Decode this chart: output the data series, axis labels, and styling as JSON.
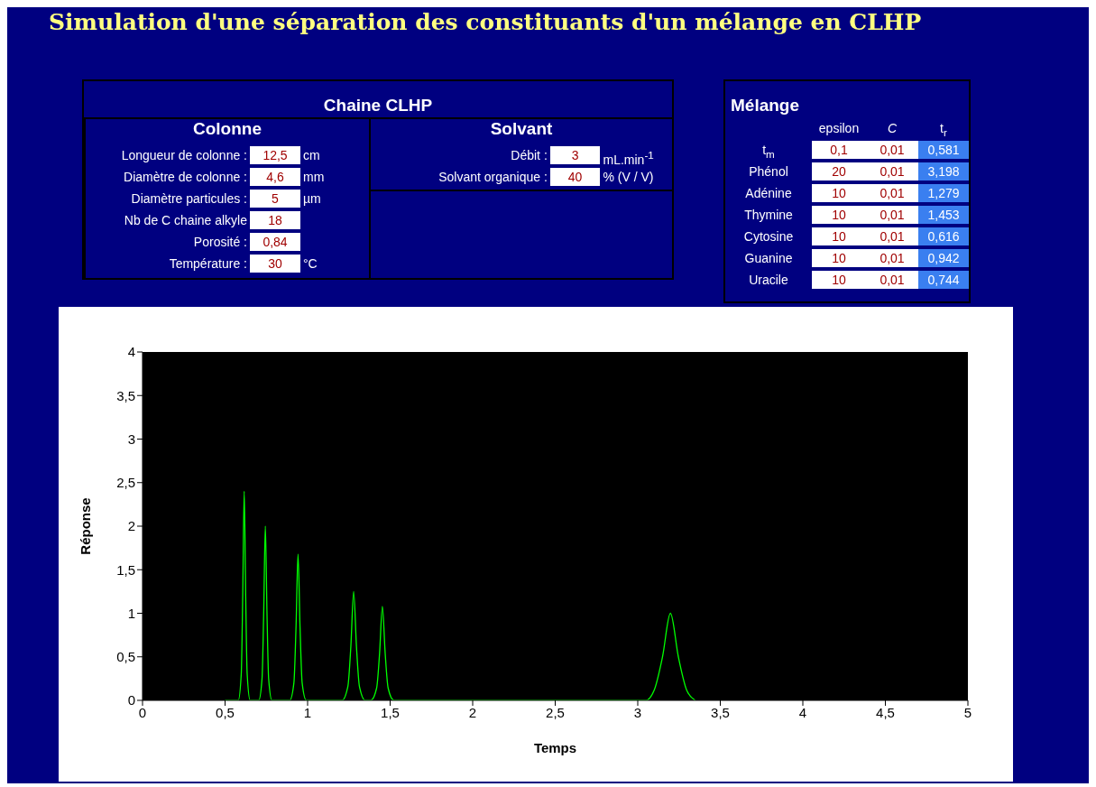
{
  "chart_data": [
    {
      "type": "other",
      "title": "Simulation d'une séparation des constituants d'un mélange en CLHP"
    },
    {
      "type": "other",
      "title": "Chaine CLHP",
      "subtitle": "Colonne",
      "annotations": [
        "Longueur de colonne :",
        "12,5",
        "cm",
        "Diamètre de colonne :",
        "4,6",
        "mm",
        "Diamètre particules :",
        "5",
        "µm",
        "Nb de C chaine alkyle",
        "18",
        null,
        "Porosité :",
        "0,84",
        null,
        "Température :",
        "30",
        "°C"
      ]
    },
    {
      "type": "other",
      "subtitle": "Solvant",
      "annotations": [
        "Débit :",
        "3",
        "mL.min$^{-1}$",
        "Solvant organique :",
        "40",
        "% (V / V)"
      ]
    },
    {
      "type": "other",
      "title": "Mélange",
      "annotations": [
        null,
        "epsilon",
        "C",
        "t$_{r}$",
        "t$_{m}$",
        "0,1",
        "0,01",
        "0,581",
        "Phénol",
        "20",
        "0,01",
        "3,198",
        "Adénine",
        "10",
        "0,01",
        "1,279",
        "Thymine",
        "10",
        "0,01",
        "1,453",
        "Cytosine",
        "10",
        "0,01",
        "0,616",
        "Guanine",
        "10",
        "0,01",
        "0,942",
        "Uracile",
        "10",
        "0,01",
        "0,744"
      ]
    },
    {
      "type": "line",
      "xlabel": "Temps",
      "ylabel": "Réponse",
      "marker": "none",
      "line_style": "solid",
      "xlim": [
        0,
        5
      ],
      "ylim": [
        0,
        4
      ],
      "xticks": [
        0,
        {
          "value": 0.5,
          "label": "0,5"
        },
        1,
        {
          "value": 1.5,
          "label": "1,5"
        },
        2,
        {
          "value": 2.5,
          "label": "2,5"
        },
        3,
        {
          "value": 3.5,
          "label": "3,5"
        },
        4,
        {
          "value": 4.5,
          "label": "4,5"
        },
        5
      ],
      "yticks": [
        0,
        {
          "value": 0.5,
          "label": "0,5"
        },
        1,
        {
          "value": 1.5,
          "label": "1,5"
        },
        2,
        {
          "value": 2.5,
          "label": "2,5"
        },
        3,
        {
          "value": 3.5,
          "label": "3,5"
        },
        4
      ],
      "series": [
        {
          "color": "#00ff00",
          "x": [
            0.5,
            0.58,
            0.598,
            0.607,
            0.616,
            0.625,
            0.634,
            0.652,
            0.704,
            0.724,
            0.734,
            0.744,
            0.754,
            0.764,
            0.784,
            0.892,
            0.917,
            0.93,
            0.942,
            0.954,
            0.967,
            0.992,
            1.209,
            1.244,
            1.262,
            1.279,
            1.296,
            1.314,
            1.349,
            1.383,
            1.418,
            1.436,
            1.453,
            1.47,
            1.488,
            1.523,
            3.048,
            3.1,
            3.15,
            3.198,
            3.246,
            3.296,
            3.348
          ],
          "values": [
            0,
            0,
            0.3,
            1.2,
            2.4,
            1.2,
            0.3,
            0,
            0,
            0.25,
            1.0,
            2.0,
            1.0,
            0.25,
            0,
            0,
            0.2,
            0.85,
            1.68,
            0.85,
            0.2,
            0,
            0,
            0.16,
            0.62,
            1.25,
            0.62,
            0.16,
            0,
            0,
            0.14,
            0.54,
            1.08,
            0.54,
            0.14,
            0,
            0,
            0.12,
            0.5,
            1.0,
            0.5,
            0.12,
            0
          ]
        }
      ]
    }
  ]
}
